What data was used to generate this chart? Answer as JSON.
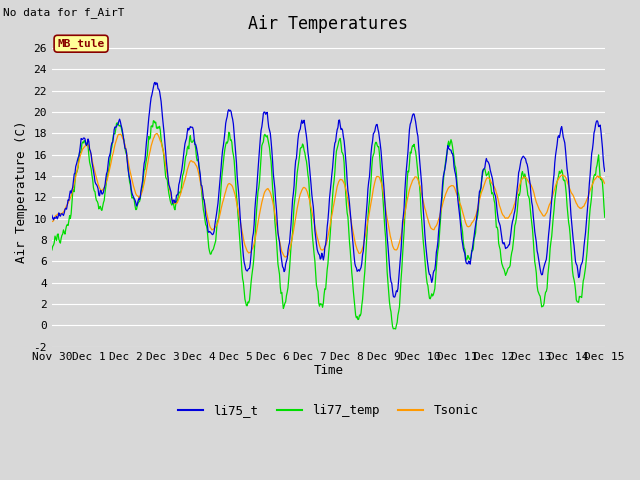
{
  "title": "Air Temperatures",
  "subtitle": "No data for f_AirT",
  "xlabel": "Time",
  "ylabel": "Air Temperature (C)",
  "ylim": [
    -2,
    27
  ],
  "yticks": [
    -2,
    0,
    2,
    4,
    6,
    8,
    10,
    12,
    14,
    16,
    18,
    20,
    22,
    24,
    26
  ],
  "xtick_labels": [
    "Nov 30",
    "Dec 1",
    "Dec 2",
    "Dec 3",
    "Dec 4",
    "Dec 5",
    "Dec 6",
    "Dec 7",
    "Dec 8",
    "Dec 9",
    "Dec 10",
    "Dec 11",
    "Dec 12",
    "Dec 13",
    "Dec 14",
    "Dec 15"
  ],
  "legend_label": "MB_tule",
  "series_labels": [
    "li75_t",
    "li77_temp",
    "Tsonic"
  ],
  "series_colors": [
    "#0000dd",
    "#00dd00",
    "#ff9900"
  ],
  "background_color": "#d8d8d8",
  "plot_bg_color": "#d8d8d8",
  "grid_color": "#ffffff",
  "title_fontsize": 12,
  "axis_fontsize": 9,
  "tick_fontsize": 8,
  "legend_box_facecolor": "#ffff99",
  "legend_box_edge": "#880000",
  "legend_text_color": "#880000"
}
